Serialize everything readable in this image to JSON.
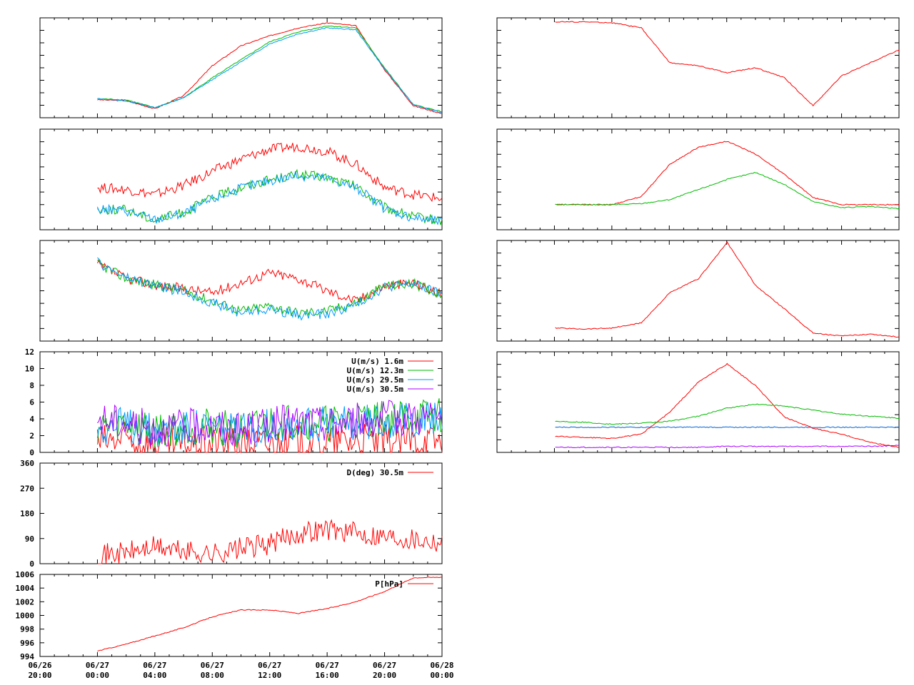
{
  "chart_data": [
    {
      "id": "temp-left",
      "type": "line",
      "series": [
        {
          "color": "#ff0000",
          "values": [
            0.18,
            0.17,
            0.09,
            0.22,
            0.52,
            0.72,
            0.82,
            0.9,
            0.95,
            0.92,
            0.48,
            0.12,
            0.04
          ]
        },
        {
          "color": "#00bb00",
          "values": [
            0.19,
            0.18,
            0.1,
            0.2,
            0.4,
            0.58,
            0.76,
            0.86,
            0.92,
            0.9,
            0.5,
            0.13,
            0.06
          ]
        },
        {
          "color": "#0099ff",
          "values": [
            0.19,
            0.17,
            0.1,
            0.2,
            0.38,
            0.56,
            0.74,
            0.84,
            0.9,
            0.88,
            0.49,
            0.13,
            0.05
          ]
        }
      ],
      "x_start": 0,
      "x_end": 1.0
    },
    {
      "id": "rh-left",
      "type": "line",
      "series": [
        {
          "color": "#ff0000",
          "values": [
            0.42,
            0.4,
            0.35,
            0.44,
            0.58,
            0.7,
            0.8,
            0.83,
            0.78,
            0.65,
            0.42,
            0.35,
            0.31
          ]
        },
        {
          "color": "#00bb00",
          "values": [
            0.2,
            0.2,
            0.1,
            0.17,
            0.32,
            0.42,
            0.5,
            0.55,
            0.52,
            0.43,
            0.22,
            0.13,
            0.09
          ]
        },
        {
          "color": "#0099ff",
          "values": [
            0.2,
            0.19,
            0.1,
            0.16,
            0.3,
            0.41,
            0.49,
            0.54,
            0.51,
            0.42,
            0.21,
            0.12,
            0.08
          ]
        }
      ],
      "x_start": 0,
      "x_end": 1.0
    },
    {
      "id": "mix-left",
      "type": "line",
      "series": [
        {
          "color": "#ff0000",
          "values": [
            0.76,
            0.62,
            0.56,
            0.52,
            0.48,
            0.58,
            0.68,
            0.62,
            0.5,
            0.4,
            0.55,
            0.58,
            0.46
          ]
        },
        {
          "color": "#00bb00",
          "values": [
            0.77,
            0.62,
            0.56,
            0.5,
            0.4,
            0.3,
            0.35,
            0.28,
            0.3,
            0.38,
            0.55,
            0.57,
            0.47
          ]
        },
        {
          "color": "#0099ff",
          "values": [
            0.78,
            0.63,
            0.55,
            0.49,
            0.38,
            0.28,
            0.32,
            0.26,
            0.27,
            0.36,
            0.54,
            0.57,
            0.46
          ]
        }
      ],
      "x_start": 0,
      "x_end": 1.0
    },
    {
      "id": "wind-speed",
      "type": "line",
      "yticks": [
        "0",
        "2",
        "4",
        "6",
        "8",
        "10",
        "12"
      ],
      "ylim": [
        0,
        12
      ],
      "legend": [
        "U(m/s)  1.6m",
        "U(m/s) 12.3m",
        "U(m/s) 29.5m",
        "U(m/s) 30.5m"
      ],
      "series": [
        {
          "name": "U(m/s)  1.6m",
          "color": "#ff0000",
          "values": [
            1.2,
            1.5,
            0.8,
            0.9,
            1.0,
            1.1,
            1.0,
            1.2,
            1.3,
            1.4,
            1.2,
            1.4,
            1.5
          ]
        },
        {
          "name": "U(m/s) 12.3m",
          "color": "#00bb00",
          "values": [
            3.0,
            3.5,
            2.6,
            3.0,
            3.2,
            2.5,
            3.5,
            3.8,
            3.4,
            3.8,
            4.0,
            4.2,
            4.4
          ]
        },
        {
          "name": "U(m/s) 29.5m",
          "color": "#0099ff",
          "values": [
            3.0,
            3.3,
            2.6,
            2.9,
            3.1,
            2.4,
            3.3,
            3.6,
            3.3,
            3.6,
            3.9,
            4.0,
            4.2
          ]
        },
        {
          "name": "U(m/s) 30.5m",
          "color": "#aa00ff",
          "values": [
            4.0,
            3.5,
            2.8,
            3.0,
            3.2,
            2.5,
            3.4,
            3.6,
            3.4,
            3.8,
            4.0,
            4.2,
            4.3
          ]
        }
      ],
      "x_start": 0,
      "x_end": 1.0
    },
    {
      "id": "wind-dir",
      "type": "line",
      "yticks": [
        "0",
        "90",
        "180",
        "270",
        "360"
      ],
      "ylim": [
        0,
        360
      ],
      "legend": [
        "D(deg)  30.5m"
      ],
      "series": [
        {
          "name": "D(deg)  30.5m",
          "color": "#ff0000",
          "values": [
            30,
            40,
            60,
            45,
            35,
            55,
            70,
            110,
            125,
            110,
            100,
            90,
            80
          ]
        }
      ],
      "x_start": 0,
      "x_end": 1.0
    },
    {
      "id": "pressure",
      "type": "line",
      "yticks": [
        "994",
        "996",
        "998",
        "1000",
        "1002",
        "1004",
        "1006"
      ],
      "ylim": [
        994,
        1006
      ],
      "legend": [
        "P[hPa]"
      ],
      "series": [
        {
          "name": "P[hPa]",
          "color": "#ff0000",
          "values": [
            994.8,
            995.8,
            997.0,
            998.2,
            999.8,
            1000.8,
            1000.8,
            1000.3,
            1001.0,
            1002.0,
            1003.5,
            1005.5,
            1005.6
          ]
        }
      ],
      "x_start": 0,
      "x_end": 1.0
    },
    {
      "id": "right-1",
      "type": "line",
      "series": [
        {
          "color": "#ff0000",
          "values": [
            0.96,
            0.96,
            0.95,
            0.9,
            0.55,
            0.52,
            0.45,
            0.5,
            0.4,
            0.12,
            0.42,
            0.55,
            0.68
          ]
        }
      ],
      "x_start": 0,
      "x_end": 1.0
    },
    {
      "id": "right-2",
      "type": "line",
      "series": [
        {
          "color": "#ff0000",
          "values": [
            0.25,
            0.25,
            0.25,
            0.33,
            0.65,
            0.82,
            0.88,
            0.75,
            0.55,
            0.32,
            0.25,
            0.25,
            0.25
          ]
        },
        {
          "color": "#00bb00",
          "values": [
            0.25,
            0.25,
            0.25,
            0.26,
            0.3,
            0.4,
            0.5,
            0.57,
            0.45,
            0.28,
            0.22,
            0.23,
            0.21
          ]
        }
      ],
      "x_start": 0,
      "x_end": 1.0
    },
    {
      "id": "right-3",
      "type": "line",
      "series": [
        {
          "color": "#ff0000",
          "values": [
            0.13,
            0.12,
            0.13,
            0.18,
            0.48,
            0.62,
            0.98,
            0.55,
            0.32,
            0.08,
            0.05,
            0.07,
            0.04
          ]
        }
      ],
      "x_start": 0,
      "x_end": 1.0
    },
    {
      "id": "right-4",
      "type": "line",
      "series": [
        {
          "color": "#ff0000",
          "values": [
            0.16,
            0.15,
            0.14,
            0.18,
            0.4,
            0.7,
            0.88,
            0.66,
            0.35,
            0.24,
            0.18,
            0.1,
            0.05
          ]
        },
        {
          "color": "#00bb00",
          "values": [
            0.31,
            0.3,
            0.28,
            0.29,
            0.31,
            0.36,
            0.44,
            0.48,
            0.46,
            0.42,
            0.38,
            0.36,
            0.34
          ]
        },
        {
          "color": "#0066dd",
          "values": [
            0.25,
            0.25,
            0.25,
            0.25,
            0.25,
            0.25,
            0.25,
            0.25,
            0.25,
            0.25,
            0.25,
            0.25,
            0.25
          ]
        },
        {
          "color": "#aa00ff",
          "values": [
            0.05,
            0.05,
            0.05,
            0.05,
            0.05,
            0.05,
            0.06,
            0.06,
            0.06,
            0.06,
            0.06,
            0.06,
            0.07
          ]
        }
      ],
      "x_start": 0,
      "x_end": 1.0
    }
  ],
  "x_axis": {
    "ticks": [
      {
        "date": "06/26",
        "time": "20:00"
      },
      {
        "date": "06/27",
        "time": "00:00"
      },
      {
        "date": "06/27",
        "time": "04:00"
      },
      {
        "date": "06/27",
        "time": "08:00"
      },
      {
        "date": "06/27",
        "time": "12:00"
      },
      {
        "date": "06/27",
        "time": "16:00"
      },
      {
        "date": "06/27",
        "time": "20:00"
      },
      {
        "date": "06/28",
        "time": "00:00"
      }
    ]
  }
}
